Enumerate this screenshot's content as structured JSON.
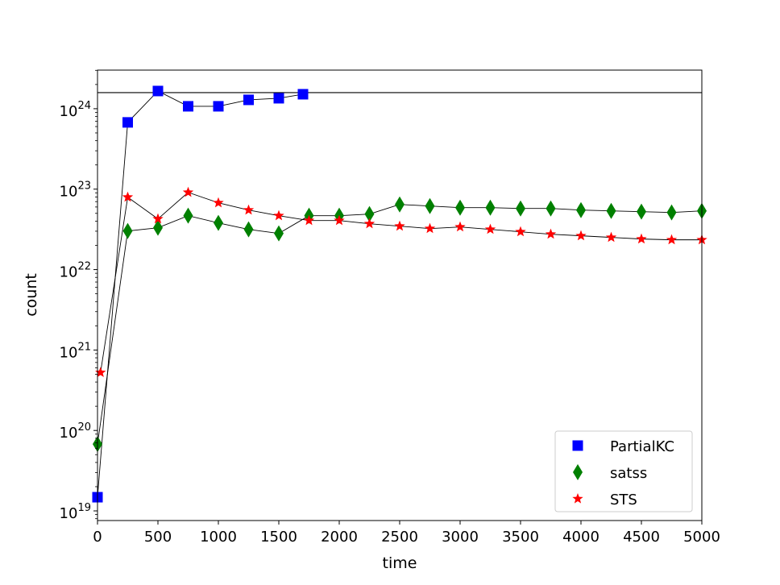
{
  "chart_data": {
    "type": "line",
    "title": "",
    "xlabel": "time",
    "ylabel": "count",
    "xlim": [
      0,
      5000
    ],
    "ylim_log10": [
      18.88,
      24.48
    ],
    "yscale": "log",
    "grid": false,
    "legend_position": "bottom-right",
    "x_ticks": [
      0,
      500,
      1000,
      1500,
      2000,
      2500,
      3000,
      3500,
      4000,
      4500,
      5000
    ],
    "y_ticks": [
      {
        "base": "10",
        "exp": "19",
        "log": 19
      },
      {
        "base": "10",
        "exp": "20",
        "log": 20
      },
      {
        "base": "10",
        "exp": "21",
        "log": 21
      },
      {
        "base": "10",
        "exp": "22",
        "log": 22
      },
      {
        "base": "10",
        "exp": "23",
        "log": 23
      },
      {
        "base": "10",
        "exp": "24",
        "log": 24
      }
    ],
    "reference_line_log10": 24.2,
    "series": [
      {
        "name": "PartialKC",
        "color": "#0000ff",
        "marker": "square",
        "x": [
          0,
          250,
          500,
          750,
          1000,
          1250,
          1500,
          1700
        ],
        "log10_y": [
          19.17,
          23.83,
          24.22,
          24.03,
          24.03,
          24.11,
          24.13,
          24.18
        ]
      },
      {
        "name": "satss",
        "color": "#008000",
        "marker": "diamond",
        "x": [
          0,
          250,
          500,
          750,
          1000,
          1250,
          1500,
          1750,
          2000,
          2250,
          2500,
          2750,
          3000,
          3250,
          3500,
          3750,
          4000,
          4250,
          4500,
          4750,
          5000
        ],
        "log10_y": [
          19.83,
          22.48,
          22.52,
          22.67,
          22.58,
          22.5,
          22.45,
          22.67,
          22.67,
          22.69,
          22.81,
          22.79,
          22.77,
          22.77,
          22.76,
          22.76,
          22.74,
          22.73,
          22.72,
          22.71,
          22.73
        ]
      },
      {
        "name": "STS",
        "color": "#ff0000",
        "marker": "star",
        "x": [
          25,
          250,
          500,
          750,
          1000,
          1250,
          1500,
          1750,
          2000,
          2250,
          2500,
          2750,
          3000,
          3250,
          3500,
          3750,
          4000,
          4250,
          4500,
          4750,
          5000
        ],
        "log10_y": [
          20.72,
          22.9,
          22.63,
          22.96,
          22.83,
          22.74,
          22.67,
          22.61,
          22.61,
          22.57,
          22.54,
          22.51,
          22.53,
          22.5,
          22.47,
          22.44,
          22.42,
          22.4,
          22.38,
          22.37,
          22.37
        ]
      }
    ]
  }
}
